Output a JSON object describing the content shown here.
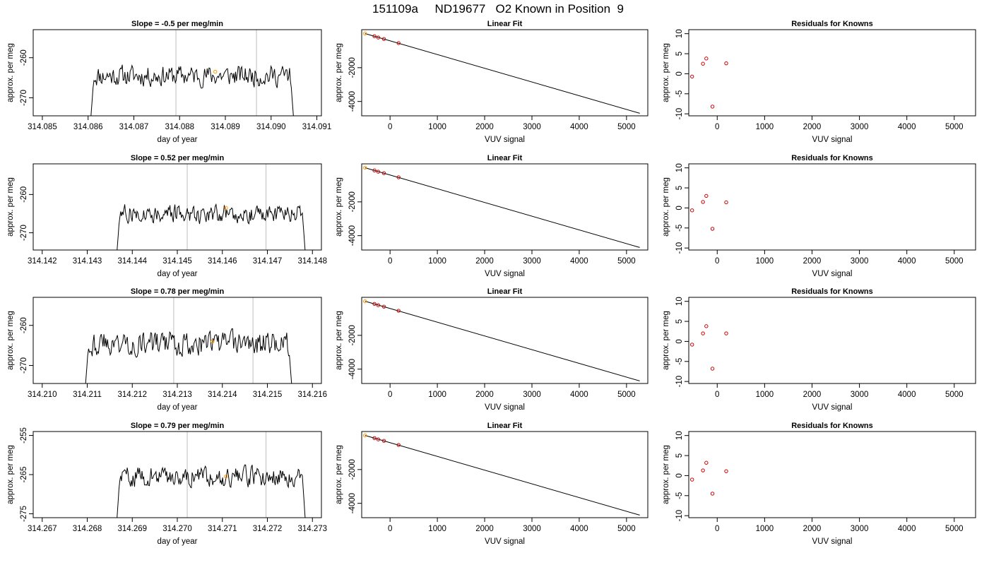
{
  "figure": {
    "suptitle": "151109a     ND19677   O2 Known in Position  9"
  },
  "chart_data": [
    {
      "type": "line",
      "panel": "time-series",
      "row": 1,
      "title": "Slope =  -0.5  per meg/min",
      "xlabel": "day of year",
      "ylabel": "approx. per meg",
      "xlim": [
        314.0848,
        314.0911
      ],
      "ylim": [
        -274.5,
        -253
      ],
      "xticks": [
        314.085,
        314.086,
        314.087,
        314.088,
        314.089,
        314.09,
        314.091
      ],
      "xtick_labels": [
        "314.085",
        "314.086",
        "314.087",
        "314.088",
        "314.089",
        "314.090",
        "314.091"
      ],
      "yticks": [
        -260,
        -270
      ],
      "ytick_labels": [
        "-260",
        "-270"
      ],
      "trace": {
        "x_start": 314.08605,
        "x_end": 314.0905,
        "level": -264.5,
        "noise": 2.2,
        "seed": 11
      },
      "vlines": [
        314.08792,
        314.08968
      ],
      "marker_point": {
        "x": 314.08878,
        "y": -263.5
      }
    },
    {
      "type": "scatter",
      "panel": "linear-fit",
      "row": 1,
      "title": "Linear Fit",
      "xlabel": "VUV signal",
      "ylabel": "approx. per meg",
      "xlim": [
        -600,
        5450
      ],
      "ylim": [
        -4850,
        250
      ],
      "xticks": [
        0,
        1000,
        2000,
        3000,
        4000,
        5000
      ],
      "xtick_labels": [
        "0",
        "1000",
        "2000",
        "3000",
        "4000",
        "5000"
      ],
      "yticks": [
        -2000,
        -4000
      ],
      "ytick_labels": [
        "-2000",
        "-4000"
      ],
      "fit_line": {
        "x": [
          -530,
          5280
        ],
        "y": [
          20,
          -4700
        ]
      },
      "points": [
        {
          "x": -530,
          "y": 20,
          "color": "#FF9900"
        },
        {
          "x": -330,
          "y": -140,
          "color": "#CC0000"
        },
        {
          "x": -250,
          "y": -215,
          "color": "#CC0000"
        },
        {
          "x": -130,
          "y": -300,
          "color": "#CC0000"
        },
        {
          "x": 180,
          "y": -545,
          "color": "#CC0000"
        }
      ]
    },
    {
      "type": "scatter",
      "panel": "residuals",
      "row": 1,
      "title": "Residuals for Knowns",
      "xlabel": "VUV signal",
      "ylabel": "approx. per meg",
      "xlim": [
        -600,
        5450
      ],
      "ylim": [
        -10.5,
        11
      ],
      "xticks": [
        0,
        1000,
        2000,
        3000,
        4000,
        5000
      ],
      "xtick_labels": [
        "0",
        "1000",
        "2000",
        "3000",
        "4000",
        "5000"
      ],
      "yticks": [
        -10,
        -5,
        0,
        5,
        10
      ],
      "ytick_labels": [
        "-10",
        "-5",
        "0",
        "5",
        "10"
      ],
      "points": [
        {
          "x": -530,
          "y": -0.7
        },
        {
          "x": -300,
          "y": 2.5
        },
        {
          "x": -230,
          "y": 3.8
        },
        {
          "x": -100,
          "y": -8.2
        },
        {
          "x": 190,
          "y": 2.6
        }
      ]
    },
    {
      "type": "line",
      "panel": "time-series",
      "row": 2,
      "title": "Slope =  0.52  per meg/min",
      "xlabel": "day of year",
      "ylabel": "approx. per meg",
      "xlim": [
        314.1418,
        314.1482
      ],
      "ylim": [
        -274.5,
        -252
      ],
      "xticks": [
        314.142,
        314.143,
        314.144,
        314.145,
        314.146,
        314.147,
        314.148
      ],
      "xtick_labels": [
        "314.142",
        "314.143",
        "314.144",
        "314.145",
        "314.146",
        "314.147",
        "314.148"
      ],
      "yticks": [
        -260,
        -270
      ],
      "ytick_labels": [
        "-260",
        "-270"
      ],
      "trace": {
        "x_start": 314.14365,
        "x_end": 314.14785,
        "level": -265,
        "noise": 2.0,
        "seed": 27
      },
      "vlines": [
        314.14522,
        314.14697
      ],
      "marker_point": {
        "x": 314.14608,
        "y": -263.5
      }
    },
    {
      "type": "scatter",
      "panel": "linear-fit",
      "row": 2,
      "title": "Linear Fit",
      "xlabel": "VUV signal",
      "ylabel": "approx. per meg",
      "xlim": [
        -600,
        5450
      ],
      "ylim": [
        -4850,
        250
      ],
      "xticks": [
        0,
        1000,
        2000,
        3000,
        4000,
        5000
      ],
      "xtick_labels": [
        "0",
        "1000",
        "2000",
        "3000",
        "4000",
        "5000"
      ],
      "yticks": [
        -2000,
        -4000
      ],
      "ytick_labels": [
        "-2000",
        "-4000"
      ],
      "fit_line": {
        "x": [
          -530,
          5280
        ],
        "y": [
          20,
          -4700
        ]
      },
      "points": [
        {
          "x": -530,
          "y": 20,
          "color": "#FF9900"
        },
        {
          "x": -330,
          "y": -140,
          "color": "#CC0000"
        },
        {
          "x": -250,
          "y": -215,
          "color": "#CC0000"
        },
        {
          "x": -130,
          "y": -300,
          "color": "#CC0000"
        },
        {
          "x": 180,
          "y": -545,
          "color": "#CC0000"
        }
      ]
    },
    {
      "type": "scatter",
      "panel": "residuals",
      "row": 2,
      "title": "Residuals for Knowns",
      "xlabel": "VUV signal",
      "ylabel": "approx. per meg",
      "xlim": [
        -600,
        5450
      ],
      "ylim": [
        -10.5,
        11
      ],
      "xticks": [
        0,
        1000,
        2000,
        3000,
        4000,
        5000
      ],
      "xtick_labels": [
        "0",
        "1000",
        "2000",
        "3000",
        "4000",
        "5000"
      ],
      "yticks": [
        -10,
        -5,
        0,
        5,
        10
      ],
      "ytick_labels": [
        "-10",
        "-5",
        "0",
        "5",
        "10"
      ],
      "points": [
        {
          "x": -530,
          "y": -0.6
        },
        {
          "x": -300,
          "y": 1.5
        },
        {
          "x": -230,
          "y": 3.0
        },
        {
          "x": -100,
          "y": -5.2
        },
        {
          "x": 190,
          "y": 1.4
        }
      ]
    },
    {
      "type": "line",
      "panel": "time-series",
      "row": 3,
      "title": "Slope =  0.78  per meg/min",
      "xlabel": "day of year",
      "ylabel": "approx. per meg",
      "xlim": [
        314.2098,
        314.2162
      ],
      "ylim": [
        -274.5,
        -253
      ],
      "xticks": [
        314.21,
        314.211,
        314.212,
        314.213,
        314.214,
        314.215,
        314.216
      ],
      "xtick_labels": [
        "314.210",
        "314.211",
        "314.212",
        "314.213",
        "314.214",
        "314.215",
        "314.216"
      ],
      "yticks": [
        -260,
        -270
      ],
      "ytick_labels": [
        "-260",
        "-270"
      ],
      "trace": {
        "x_start": 314.21095,
        "x_end": 314.21555,
        "level": -264.5,
        "noise": 2.6,
        "seed": 43
      },
      "vlines": [
        314.21292,
        314.21468
      ],
      "marker_point": {
        "x": 314.21378,
        "y": -264
      }
    },
    {
      "type": "scatter",
      "panel": "linear-fit",
      "row": 3,
      "title": "Linear Fit",
      "xlabel": "VUV signal",
      "ylabel": "approx. per meg",
      "xlim": [
        -600,
        5450
      ],
      "ylim": [
        -4850,
        250
      ],
      "xticks": [
        0,
        1000,
        2000,
        3000,
        4000,
        5000
      ],
      "xtick_labels": [
        "0",
        "1000",
        "2000",
        "3000",
        "4000",
        "5000"
      ],
      "yticks": [
        -2000,
        -4000
      ],
      "ytick_labels": [
        "-2000",
        "-4000"
      ],
      "fit_line": {
        "x": [
          -530,
          5280
        ],
        "y": [
          20,
          -4700
        ]
      },
      "points": [
        {
          "x": -530,
          "y": 20,
          "color": "#FF9900"
        },
        {
          "x": -330,
          "y": -140,
          "color": "#CC0000"
        },
        {
          "x": -250,
          "y": -215,
          "color": "#CC0000"
        },
        {
          "x": -130,
          "y": -300,
          "color": "#CC0000"
        },
        {
          "x": 180,
          "y": -545,
          "color": "#CC0000"
        }
      ]
    },
    {
      "type": "scatter",
      "panel": "residuals",
      "row": 3,
      "title": "Residuals for Knowns",
      "xlabel": "VUV signal",
      "ylabel": "approx. per meg",
      "xlim": [
        -600,
        5450
      ],
      "ylim": [
        -10.5,
        11
      ],
      "xticks": [
        0,
        1000,
        2000,
        3000,
        4000,
        5000
      ],
      "xtick_labels": [
        "0",
        "1000",
        "2000",
        "3000",
        "4000",
        "5000"
      ],
      "yticks": [
        -10,
        -5,
        0,
        5,
        10
      ],
      "ytick_labels": [
        "-10",
        "-5",
        "0",
        "5",
        "10"
      ],
      "points": [
        {
          "x": -530,
          "y": -0.8
        },
        {
          "x": -300,
          "y": 2.0
        },
        {
          "x": -230,
          "y": 3.8
        },
        {
          "x": -100,
          "y": -6.8
        },
        {
          "x": 190,
          "y": 2.0
        }
      ]
    },
    {
      "type": "line",
      "panel": "time-series",
      "row": 4,
      "title": "Slope =  0.79  per meg/min",
      "xlabel": "day of year",
      "ylabel": "approx. per meg",
      "xlim": [
        314.2668,
        314.2732
      ],
      "ylim": [
        -276,
        -254
      ],
      "xticks": [
        314.267,
        314.268,
        314.269,
        314.27,
        314.271,
        314.272,
        314.273
      ],
      "xtick_labels": [
        "314.267",
        "314.268",
        "314.269",
        "314.270",
        "314.271",
        "314.272",
        "314.273"
      ],
      "yticks": [
        -255,
        -265,
        -275
      ],
      "ytick_labels": [
        "-255",
        "-265",
        "-275"
      ],
      "trace": {
        "x_start": 314.26865,
        "x_end": 314.27285,
        "level": -265.5,
        "noise": 2.1,
        "seed": 59
      },
      "vlines": [
        314.27022,
        314.27197
      ],
      "marker_point": {
        "x": 314.27108,
        "y": -265.5
      }
    },
    {
      "type": "scatter",
      "panel": "linear-fit",
      "row": 4,
      "title": "Linear Fit",
      "xlabel": "VUV signal",
      "ylabel": "approx. per meg",
      "xlim": [
        -600,
        5450
      ],
      "ylim": [
        -4850,
        250
      ],
      "xticks": [
        0,
        1000,
        2000,
        3000,
        4000,
        5000
      ],
      "xtick_labels": [
        "0",
        "1000",
        "2000",
        "3000",
        "4000",
        "5000"
      ],
      "yticks": [
        -2000,
        -4000
      ],
      "ytick_labels": [
        "-2000",
        "-4000"
      ],
      "fit_line": {
        "x": [
          -530,
          5280
        ],
        "y": [
          20,
          -4700
        ]
      },
      "points": [
        {
          "x": -530,
          "y": 20,
          "color": "#FF9900"
        },
        {
          "x": -330,
          "y": -140,
          "color": "#CC0000"
        },
        {
          "x": -250,
          "y": -215,
          "color": "#CC0000"
        },
        {
          "x": -130,
          "y": -300,
          "color": "#CC0000"
        },
        {
          "x": 180,
          "y": -545,
          "color": "#CC0000"
        }
      ]
    },
    {
      "type": "scatter",
      "panel": "residuals",
      "row": 4,
      "title": "Residuals for Knowns",
      "xlabel": "VUV signal",
      "ylabel": "approx. per meg",
      "xlim": [
        -600,
        5450
      ],
      "ylim": [
        -10.5,
        11
      ],
      "xticks": [
        0,
        1000,
        2000,
        3000,
        4000,
        5000
      ],
      "xtick_labels": [
        "0",
        "1000",
        "2000",
        "3000",
        "4000",
        "5000"
      ],
      "yticks": [
        -10,
        -5,
        0,
        5,
        10
      ],
      "ytick_labels": [
        "-10",
        "-5",
        "0",
        "5",
        "10"
      ],
      "points": [
        {
          "x": -530,
          "y": -1.0
        },
        {
          "x": -300,
          "y": 1.3
        },
        {
          "x": -230,
          "y": 3.2
        },
        {
          "x": -100,
          "y": -4.5
        },
        {
          "x": 190,
          "y": 1.1
        }
      ]
    }
  ],
  "colors": {
    "trace": "#000000",
    "vline": "#BEBEBE",
    "known_point": "#CC0000",
    "reference_point": "#FF9900",
    "axis": "#000000"
  }
}
